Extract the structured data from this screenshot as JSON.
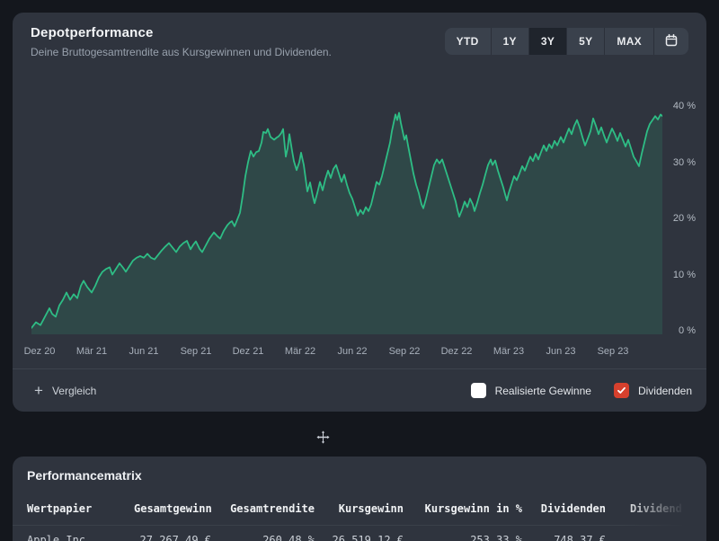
{
  "header": {
    "title": "Depotperformance",
    "subtitle": "Deine Bruttogesamtrendite aus Kursgewinnen und Dividenden."
  },
  "range_selector": {
    "options": [
      "YTD",
      "1Y",
      "3Y",
      "5Y",
      "MAX"
    ],
    "selected": "3Y",
    "calendar_icon": "calendar-icon"
  },
  "controls": {
    "compare_label": "Vergleich",
    "realized_gains_label": "Realisierte Gewinne",
    "realized_gains_checked": false,
    "dividends_label": "Dividenden",
    "dividends_checked": true,
    "checked_color": "#d6402d"
  },
  "chart_data": {
    "type": "area",
    "series_name": "Bruttogesamtrendite",
    "unit": "%",
    "x_labels": [
      "Dez 20",
      "Mär 21",
      "Jun 21",
      "Sep 21",
      "Dez 21",
      "Mär 22",
      "Jun 22",
      "Sep 22",
      "Dez 22",
      "Mär 23",
      "Jun 23",
      "Sep 23"
    ],
    "y_tick_labels": [
      "40 %",
      "30 %",
      "20 %",
      "10 %",
      "0 %"
    ],
    "y_tick_values": [
      40,
      30,
      20,
      10,
      0
    ],
    "ylim": [
      0,
      41.5
    ],
    "grid": false,
    "legend": false,
    "line_color": "#2ebd85",
    "fill_color": "rgba(46,189,133,0.15)",
    "points": [
      [
        0,
        0.5
      ],
      [
        5,
        1.5
      ],
      [
        10,
        1.0
      ],
      [
        15,
        2.5
      ],
      [
        20,
        4.0
      ],
      [
        23,
        3.0
      ],
      [
        27,
        2.5
      ],
      [
        31,
        4.5
      ],
      [
        35,
        5.5
      ],
      [
        39,
        6.8
      ],
      [
        43,
        5.5
      ],
      [
        47,
        6.5
      ],
      [
        51,
        5.8
      ],
      [
        55,
        8.0
      ],
      [
        58,
        8.9
      ],
      [
        62,
        7.8
      ],
      [
        65,
        7.2
      ],
      [
        67,
        6.8
      ],
      [
        71,
        8.0
      ],
      [
        75,
        9.5
      ],
      [
        79,
        10.5
      ],
      [
        83,
        11.0
      ],
      [
        87,
        11.3
      ],
      [
        90,
        10.0
      ],
      [
        94,
        11.0
      ],
      [
        98,
        12.0
      ],
      [
        102,
        11.2
      ],
      [
        105,
        10.5
      ],
      [
        109,
        11.5
      ],
      [
        113,
        12.5
      ],
      [
        117,
        13.0
      ],
      [
        121,
        13.3
      ],
      [
        125,
        13.0
      ],
      [
        129,
        13.7
      ],
      [
        133,
        13.0
      ],
      [
        137,
        12.7
      ],
      [
        141,
        13.5
      ],
      [
        145,
        14.3
      ],
      [
        149,
        15.0
      ],
      [
        153,
        15.6
      ],
      [
        157,
        14.8
      ],
      [
        161,
        14.0
      ],
      [
        165,
        15.0
      ],
      [
        169,
        15.6
      ],
      [
        173,
        16.0
      ],
      [
        177,
        14.5
      ],
      [
        180,
        15.3
      ],
      [
        183,
        15.9
      ],
      [
        187,
        14.6
      ],
      [
        190,
        14.0
      ],
      [
        194,
        15.2
      ],
      [
        198,
        16.4
      ],
      [
        203,
        17.5
      ],
      [
        207,
        16.8
      ],
      [
        210,
        16.4
      ],
      [
        214,
        17.8
      ],
      [
        218,
        18.8
      ],
      [
        221,
        19.3
      ],
      [
        223,
        19.5
      ],
      [
        226,
        18.6
      ],
      [
        229,
        19.8
      ],
      [
        232,
        21.0
      ],
      [
        235,
        24.0
      ],
      [
        238,
        27.5
      ],
      [
        241,
        30.0
      ],
      [
        244,
        32.0
      ],
      [
        247,
        31.0
      ],
      [
        250,
        31.8
      ],
      [
        253,
        32.0
      ],
      [
        256,
        33.5
      ],
      [
        258,
        35.4
      ],
      [
        261,
        35.2
      ],
      [
        263,
        35.9
      ],
      [
        266,
        34.5
      ],
      [
        270,
        34.0
      ],
      [
        273,
        34.4
      ],
      [
        275,
        34.6
      ],
      [
        278,
        35.2
      ],
      [
        280,
        35.9
      ],
      [
        283,
        31.0
      ],
      [
        285,
        32.5
      ],
      [
        287,
        35.0
      ],
      [
        290,
        32.0
      ],
      [
        292,
        30.2
      ],
      [
        295,
        28.6
      ],
      [
        298,
        30.0
      ],
      [
        300,
        31.7
      ],
      [
        303,
        29.5
      ],
      [
        307,
        24.8
      ],
      [
        310,
        26.4
      ],
      [
        313,
        24.0
      ],
      [
        315,
        22.7
      ],
      [
        318,
        24.5
      ],
      [
        321,
        26.5
      ],
      [
        324,
        25.0
      ],
      [
        327,
        27.0
      ],
      [
        330,
        28.5
      ],
      [
        333,
        27.2
      ],
      [
        336,
        28.8
      ],
      [
        339,
        29.5
      ],
      [
        342,
        28.0
      ],
      [
        345,
        26.5
      ],
      [
        348,
        27.8
      ],
      [
        351,
        26.0
      ],
      [
        354,
        24.5
      ],
      [
        357,
        23.5
      ],
      [
        360,
        22.0
      ],
      [
        363,
        20.5
      ],
      [
        366,
        21.5
      ],
      [
        369,
        20.8
      ],
      [
        372,
        22.0
      ],
      [
        375,
        21.3
      ],
      [
        378,
        22.5
      ],
      [
        381,
        24.5
      ],
      [
        384,
        26.5
      ],
      [
        387,
        26.0
      ],
      [
        390,
        27.5
      ],
      [
        393,
        29.5
      ],
      [
        396,
        31.5
      ],
      [
        399,
        33.5
      ],
      [
        401,
        35.5
      ],
      [
        403,
        37.0
      ],
      [
        405,
        38.5
      ],
      [
        407,
        37.5
      ],
      [
        409,
        38.8
      ],
      [
        411,
        37.0
      ],
      [
        413,
        35.5
      ],
      [
        415,
        34.0
      ],
      [
        417,
        34.8
      ],
      [
        419,
        33.0
      ],
      [
        422,
        30.5
      ],
      [
        425,
        28.0
      ],
      [
        428,
        26.0
      ],
      [
        431,
        24.5
      ],
      [
        434,
        22.5
      ],
      [
        436,
        21.8
      ],
      [
        439,
        23.5
      ],
      [
        442,
        25.5
      ],
      [
        445,
        27.5
      ],
      [
        448,
        29.5
      ],
      [
        451,
        30.5
      ],
      [
        454,
        29.8
      ],
      [
        457,
        30.5
      ],
      [
        460,
        29.0
      ],
      [
        463,
        27.5
      ],
      [
        466,
        26.0
      ],
      [
        469,
        24.5
      ],
      [
        472,
        23.0
      ],
      [
        474,
        21.5
      ],
      [
        476,
        20.3
      ],
      [
        479,
        21.5
      ],
      [
        482,
        23.0
      ],
      [
        485,
        22.0
      ],
      [
        488,
        23.5
      ],
      [
        491,
        22.5
      ],
      [
        493,
        21.3
      ],
      [
        496,
        22.8
      ],
      [
        499,
        24.5
      ],
      [
        502,
        26.0
      ],
      [
        505,
        27.8
      ],
      [
        508,
        29.5
      ],
      [
        511,
        30.5
      ],
      [
        513,
        29.5
      ],
      [
        516,
        30.3
      ],
      [
        519,
        28.5
      ],
      [
        522,
        27.0
      ],
      [
        525,
        25.5
      ],
      [
        527,
        24.3
      ],
      [
        529,
        23.2
      ],
      [
        531,
        24.5
      ],
      [
        534,
        26.0
      ],
      [
        537,
        27.5
      ],
      [
        540,
        26.8
      ],
      [
        543,
        28.0
      ],
      [
        546,
        29.3
      ],
      [
        549,
        28.5
      ],
      [
        552,
        29.8
      ],
      [
        555,
        31.0
      ],
      [
        558,
        30.2
      ],
      [
        561,
        31.5
      ],
      [
        564,
        30.5
      ],
      [
        567,
        31.8
      ],
      [
        570,
        33.0
      ],
      [
        573,
        32.0
      ],
      [
        576,
        33.2
      ],
      [
        579,
        32.5
      ],
      [
        582,
        33.8
      ],
      [
        585,
        33.0
      ],
      [
        589,
        34.5
      ],
      [
        592,
        33.5
      ],
      [
        595,
        34.8
      ],
      [
        598,
        36.0
      ],
      [
        601,
        35.0
      ],
      [
        604,
        36.5
      ],
      [
        607,
        37.5
      ],
      [
        610,
        36.2
      ],
      [
        613,
        34.5
      ],
      [
        616,
        33.0
      ],
      [
        619,
        34.2
      ],
      [
        622,
        35.5
      ],
      [
        625,
        37.8
      ],
      [
        628,
        36.5
      ],
      [
        631,
        35.0
      ],
      [
        634,
        36.2
      ],
      [
        637,
        34.8
      ],
      [
        640,
        33.5
      ],
      [
        643,
        34.8
      ],
      [
        646,
        36.0
      ],
      [
        649,
        35.0
      ],
      [
        652,
        33.8
      ],
      [
        655,
        35.2
      ],
      [
        658,
        34.0
      ],
      [
        661,
        32.8
      ],
      [
        664,
        34.0
      ],
      [
        667,
        32.5
      ],
      [
        670,
        31.0
      ],
      [
        673,
        30.2
      ],
      [
        676,
        29.3
      ],
      [
        679,
        31.5
      ],
      [
        682,
        33.5
      ],
      [
        685,
        35.5
      ],
      [
        688,
        36.8
      ],
      [
        691,
        37.5
      ],
      [
        694,
        38.2
      ],
      [
        697,
        37.6
      ],
      [
        700,
        38.5
      ],
      [
        702,
        38.2
      ]
    ]
  },
  "matrix": {
    "title": "Performancematrix",
    "columns": [
      "Wertpapier",
      "Gesamtgewinn",
      "Gesamtrendite",
      "Kursgewinn",
      "Kursgewinn in %",
      "Dividenden",
      "Dividend"
    ],
    "rows": [
      {
        "cells": [
          "Apple Inc",
          "27.267,49 €",
          "260,48 %",
          "26.519,12 €",
          "253,33 %",
          "748,37 €",
          ""
        ]
      }
    ]
  }
}
